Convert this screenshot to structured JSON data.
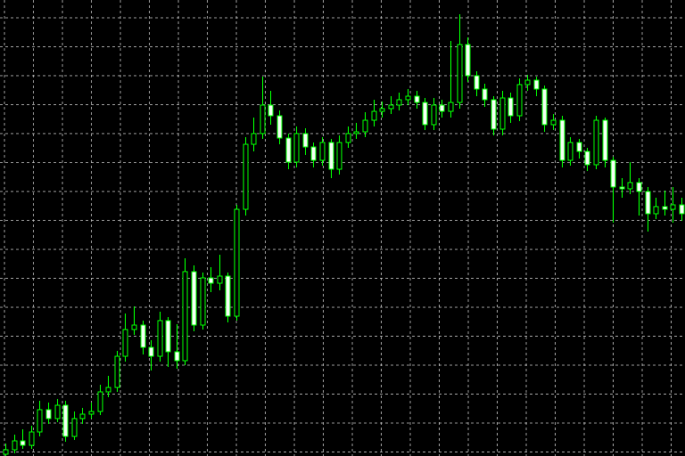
{
  "chart_data": {
    "type": "candlestick",
    "ylim": [
      0,
      512
    ],
    "grid": true,
    "up_color": "#000000",
    "down_color": "#f0fff0",
    "wick_color": "#00ff00",
    "open": [
      2,
      7,
      17,
      12,
      27,
      52,
      42,
      57,
      22,
      42,
      47,
      50,
      72,
      77,
      112,
      142,
      147,
      122,
      112,
      152,
      117,
      107,
      207,
      147,
      200,
      194,
      202,
      157,
      277,
      350,
      362,
      394,
      382,
      357,
      330,
      362,
      347,
      332,
      352,
      322,
      352,
      362,
      364,
      377,
      387,
      390,
      394,
      400,
      404,
      397,
      372,
      394,
      387,
      397,
      462,
      427,
      412,
      400,
      367,
      402,
      382,
      417,
      422,
      412,
      372,
      377,
      332,
      352,
      342,
      327,
      377,
      332,
      302,
      300,
      307,
      297,
      272,
      280,
      277,
      282
    ],
    "high": [
      14,
      24,
      30,
      34,
      62,
      60,
      64,
      62,
      50,
      54,
      60,
      80,
      90,
      118,
      160,
      168,
      152,
      130,
      162,
      156,
      148,
      222,
      214,
      206,
      212,
      226,
      206,
      282,
      358,
      380,
      426,
      410,
      388,
      362,
      370,
      368,
      352,
      358,
      356,
      360,
      370,
      374,
      386,
      400,
      398,
      404,
      408,
      412,
      410,
      402,
      402,
      400,
      466,
      496,
      470,
      432,
      418,
      404,
      410,
      408,
      424,
      428,
      426,
      416,
      384,
      382,
      358,
      356,
      346,
      382,
      380,
      336,
      312,
      330,
      312,
      302,
      290,
      298,
      302,
      290
    ],
    "low": [
      0,
      3,
      8,
      8,
      22,
      36,
      38,
      16,
      18,
      36,
      42,
      46,
      66,
      72,
      106,
      136,
      114,
      96,
      106,
      100,
      98,
      102,
      140,
      142,
      184,
      186,
      150,
      152,
      270,
      342,
      356,
      372,
      350,
      322,
      324,
      338,
      324,
      326,
      312,
      316,
      346,
      356,
      358,
      370,
      380,
      384,
      388,
      394,
      390,
      366,
      366,
      380,
      380,
      390,
      420,
      404,
      392,
      360,
      360,
      374,
      376,
      410,
      404,
      364,
      366,
      324,
      326,
      334,
      320,
      322,
      324,
      262,
      290,
      294,
      270,
      252,
      266,
      270,
      262,
      264
    ],
    "close": [
      7,
      17,
      12,
      27,
      52,
      42,
      57,
      22,
      42,
      47,
      50,
      72,
      77,
      112,
      142,
      147,
      122,
      112,
      152,
      117,
      107,
      207,
      147,
      200,
      194,
      202,
      157,
      277,
      350,
      362,
      394,
      382,
      357,
      330,
      362,
      347,
      332,
      352,
      322,
      352,
      362,
      364,
      377,
      387,
      390,
      394,
      400,
      404,
      397,
      372,
      394,
      387,
      397,
      462,
      427,
      412,
      400,
      367,
      402,
      382,
      417,
      422,
      412,
      372,
      377,
      332,
      352,
      342,
      327,
      377,
      332,
      302,
      300,
      307,
      297,
      272,
      280,
      277,
      282,
      272
    ]
  }
}
